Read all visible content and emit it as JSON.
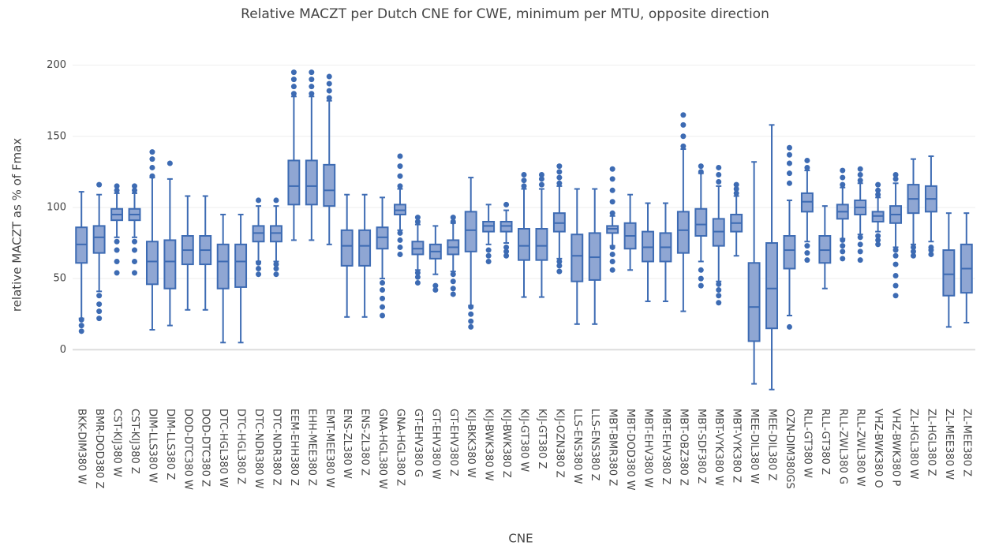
{
  "chart_data": {
    "type": "box",
    "title": "Relative MACZT per Dutch CNE for CWE, minimum per MTU, opposite direction",
    "x_label": "CNE",
    "y_label": "relative MACZT as % of Fmax",
    "categories": [
      "BKK-DIM380 W",
      "BMR-DOD380 Z",
      "CST-KIJ380 W",
      "CST-KIJ380 Z",
      "DIM-LLS380 W",
      "DIM-LLS380 Z",
      "DOD-DTC380 W",
      "DOD-DTC380 Z",
      "DTC-HGL380 W",
      "DTC-HGL380 Z",
      "DTC-NDR380 W",
      "DTC-NDR380 Z",
      "EEM-EHH380 Z",
      "EHH-MEE380 Z",
      "EMT-MEE380 W",
      "ENS-ZL380 W",
      "ENS-ZL380 Z",
      "GNA-HGL380 W",
      "GNA-HGL380 Z",
      "GT-EHV380 G",
      "GT-EHV380 W",
      "GT-EHV380 Z",
      "KIJ-BKK380 W",
      "KIJ-BWK380 W",
      "KIJ-BWK380 Z",
      "KIJ-GT380 W",
      "KIJ-GT380 Z",
      "KIJ-OZN380 Z",
      "LLS-ENS380 W",
      "LLS-ENS380 Z",
      "MBT-BMR380 Z",
      "MBT-DOD380 W",
      "MBT-EHV380 W",
      "MBT-EHV380 Z",
      "MBT-OBZ380 Z",
      "MBT-SDF380 Z",
      "MBT-VYK380 W",
      "MBT-VYK380 Z",
      "MEE-DIL380 W",
      "MEE-DIL380 Z",
      "OZN-DIM380GS",
      "RLL-GT380 W",
      "RLL-GT380 Z",
      "RLL-ZWL380 G",
      "RLL-ZWL380 W",
      "VHZ-BWK380 O",
      "VHZ-BWK380 P",
      "ZL-HGL380 W",
      "ZL-HGL380 Z",
      "ZL-MEE380 W",
      "ZL-MEE380 Z"
    ],
    "lower": [
      22,
      41,
      79,
      79,
      14,
      17,
      28,
      28,
      5,
      5,
      62,
      62,
      77,
      77,
      74,
      23,
      23,
      50,
      84,
      56,
      53,
      55,
      31,
      74,
      75,
      37,
      37,
      64,
      18,
      18,
      73,
      56,
      34,
      34,
      27,
      62,
      48,
      66,
      -24,
      -28,
      24,
      76,
      43,
      78,
      81,
      83,
      72,
      74,
      76,
      16,
      19
    ],
    "q1": [
      61,
      68,
      91,
      91,
      46,
      43,
      60,
      60,
      43,
      44,
      76,
      76,
      102,
      102,
      101,
      59,
      59,
      71,
      95,
      67,
      64,
      67,
      69,
      83,
      83,
      63,
      63,
      83,
      48,
      49,
      82,
      71,
      62,
      62,
      68,
      80,
      73,
      83,
      6,
      15,
      57,
      97,
      61,
      92,
      95,
      90,
      89,
      96,
      97,
      38,
      40
    ],
    "median": [
      74,
      79,
      95,
      95,
      62,
      62,
      70,
      70,
      62,
      62,
      82,
      82,
      115,
      115,
      112,
      73,
      73,
      79,
      98,
      71,
      69,
      72,
      84,
      87,
      87,
      73,
      73,
      89,
      66,
      65,
      85,
      80,
      72,
      72,
      84,
      88,
      83,
      89,
      30,
      43,
      70,
      104,
      70,
      97,
      100,
      94,
      95,
      106,
      106,
      53,
      57
    ],
    "q3": [
      86,
      87,
      99,
      99,
      76,
      77,
      80,
      80,
      74,
      74,
      87,
      87,
      133,
      133,
      130,
      84,
      84,
      86,
      102,
      76,
      74,
      77,
      97,
      90,
      90,
      85,
      85,
      96,
      81,
      82,
      87,
      89,
      83,
      82,
      97,
      99,
      92,
      95,
      61,
      75,
      80,
      110,
      80,
      102,
      105,
      97,
      101,
      116,
      115,
      70,
      74
    ],
    "upper": [
      111,
      109,
      110,
      110,
      121,
      120,
      108,
      108,
      95,
      95,
      101,
      101,
      178,
      178,
      175,
      109,
      109,
      107,
      113,
      88,
      87,
      89,
      121,
      102,
      98,
      113,
      113,
      115,
      113,
      113,
      94,
      109,
      103,
      103,
      141,
      124,
      115,
      108,
      132,
      158,
      105,
      126,
      101,
      114,
      117,
      107,
      117,
      134,
      136,
      96,
      96
    ],
    "outliers": [
      [
        13,
        17,
        21
      ],
      [
        22,
        27,
        32,
        38,
        116
      ],
      [
        54,
        62,
        70,
        76,
        112,
        115
      ],
      [
        54,
        62,
        70,
        76,
        112,
        115
      ],
      [
        122,
        128,
        134,
        139
      ],
      [
        131
      ],
      [],
      [],
      [],
      [],
      [
        53,
        57,
        61,
        105
      ],
      [
        53,
        57,
        60,
        105
      ],
      [
        180,
        185,
        190,
        195
      ],
      [
        180,
        185,
        190,
        195
      ],
      [
        177,
        182,
        187,
        192
      ],
      [],
      [],
      [
        24,
        30,
        36,
        42,
        47
      ],
      [
        67,
        72,
        77,
        82,
        115,
        122,
        129,
        136
      ],
      [
        47,
        51,
        54,
        90,
        93
      ],
      [
        42,
        45
      ],
      [
        39,
        43,
        48,
        53,
        90,
        93
      ],
      [
        16,
        20,
        25,
        30
      ],
      [
        62,
        66,
        70
      ],
      [
        66,
        69,
        72,
        102
      ],
      [
        115,
        119,
        123
      ],
      [
        116,
        120,
        123
      ],
      [
        55,
        59,
        62,
        117,
        121,
        125,
        129
      ],
      [],
      [],
      [
        56,
        62,
        67,
        72,
        96,
        104,
        112,
        120,
        127
      ],
      [],
      [],
      [],
      [
        143,
        150,
        158,
        165
      ],
      [
        45,
        50,
        56,
        125,
        129
      ],
      [
        33,
        38,
        42,
        46,
        118,
        123,
        128
      ],
      [
        110,
        113,
        116
      ],
      [],
      [],
      [
        16,
        117,
        124,
        131,
        137,
        142
      ],
      [
        63,
        68,
        73,
        128,
        133
      ],
      [],
      [
        64,
        69,
        73,
        77,
        116,
        121,
        126
      ],
      [
        63,
        69,
        74,
        79,
        119,
        123,
        127
      ],
      [
        74,
        77,
        80,
        109,
        112,
        116
      ],
      [
        38,
        45,
        52,
        60,
        66,
        70,
        120,
        123
      ],
      [
        66,
        69,
        72
      ],
      [
        67,
        70,
        72
      ],
      [],
      []
    ],
    "color": "#3d6bb3",
    "fill": "#8fa6d3",
    "ylim": [
      -37,
      207
    ],
    "yticks": [
      0,
      50,
      100,
      150,
      200
    ],
    "grid": true
  }
}
